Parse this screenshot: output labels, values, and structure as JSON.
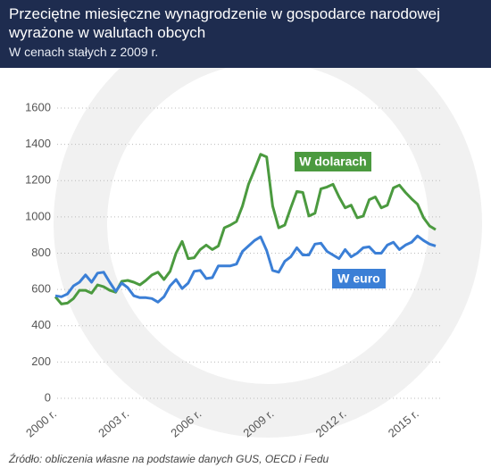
{
  "chart_data": {
    "type": "line",
    "title": "Przeciętne miesięczne wynagrodzenie w gospodarce narodowej wyrażone w walutach obcych",
    "subtitle": "W cenach stałych z 2009 r.",
    "source": "Źródło: obliczenia własne na podstawie danych GUS, OECD i Fedu",
    "categories": [
      "2000 r.",
      null,
      null,
      null,
      null,
      null,
      null,
      null,
      null,
      null,
      null,
      null,
      "2003 r.",
      null,
      null,
      null,
      null,
      null,
      null,
      null,
      null,
      null,
      null,
      null,
      "2006 r.",
      null,
      null,
      null,
      null,
      null,
      null,
      null,
      null,
      null,
      null,
      null,
      "2009 r.",
      null,
      null,
      null,
      null,
      null,
      null,
      null,
      null,
      null,
      null,
      null,
      "2012 r.",
      null,
      null,
      null,
      null,
      null,
      null,
      null,
      null,
      null,
      null,
      null,
      "2015 r.",
      null,
      null,
      null
    ],
    "series": [
      {
        "name": "W dolarach",
        "color": "#4b9a3f",
        "values": [
          560,
          520,
          525,
          550,
          595,
          595,
          580,
          625,
          615,
          595,
          585,
          645,
          650,
          640,
          625,
          650,
          680,
          695,
          655,
          700,
          800,
          865,
          770,
          775,
          820,
          845,
          820,
          840,
          940,
          955,
          975,
          1060,
          1180,
          1260,
          1345,
          1330,
          1060,
          940,
          955,
          1050,
          1140,
          1135,
          1005,
          1020,
          1155,
          1165,
          1180,
          1110,
          1050,
          1065,
          995,
          1005,
          1095,
          1110,
          1050,
          1065,
          1160,
          1175,
          1135,
          1100,
          1070,
          995,
          950,
          930
        ]
      },
      {
        "name": "W euro",
        "color": "#3b7fd6",
        "values": [
          565,
          560,
          575,
          620,
          640,
          680,
          640,
          690,
          695,
          640,
          590,
          635,
          610,
          565,
          555,
          555,
          550,
          530,
          560,
          620,
          655,
          605,
          635,
          700,
          705,
          660,
          665,
          730,
          730,
          730,
          740,
          810,
          840,
          870,
          890,
          815,
          705,
          695,
          755,
          780,
          830,
          790,
          790,
          850,
          855,
          810,
          790,
          770,
          820,
          780,
          800,
          830,
          835,
          800,
          800,
          845,
          860,
          820,
          845,
          860,
          895,
          870,
          850,
          840
        ]
      }
    ],
    "ylim": [
      0,
      1600
    ],
    "yticks": [
      0,
      200,
      400,
      600,
      800,
      1000,
      1200,
      1400,
      1600
    ],
    "grid": true
  }
}
